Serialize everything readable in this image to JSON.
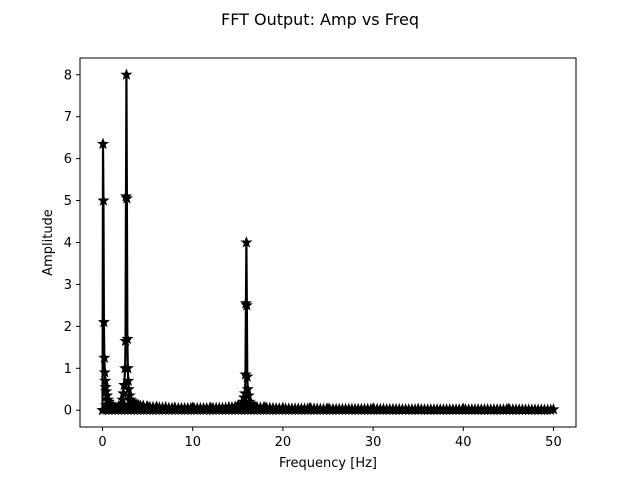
{
  "chart_data": {
    "type": "line",
    "title": "FFT Output: Amp vs Freq",
    "xlabel": "Frequency [Hz]",
    "ylabel": "Amplitude",
    "xlim": [
      -2.5,
      52.5
    ],
    "ylim": [
      -0.4,
      8.4
    ],
    "xticks": [
      0,
      10,
      20,
      30,
      40,
      50
    ],
    "yticks": [
      0,
      1,
      2,
      3,
      4,
      5,
      6,
      7,
      8
    ],
    "grid": false,
    "legend": "none",
    "series": [
      {
        "marker": "star",
        "color": "#000000",
        "x": [
          0,
          0.05,
          0.1,
          0.15,
          0.2,
          0.25,
          0.3,
          0.35,
          0.4,
          0.5,
          0.6,
          0.7,
          0.8,
          1.0,
          1.2,
          1.4,
          1.6,
          1.8,
          2.0,
          2.2,
          2.3,
          2.4,
          2.5,
          2.55,
          2.6,
          2.65,
          2.7,
          2.75,
          2.8,
          2.85,
          2.9,
          3.0,
          3.1,
          3.2,
          3.4,
          3.6,
          3.8,
          4.0,
          4.5,
          5.0,
          6.0,
          7.0,
          8.0,
          10.0,
          12.0,
          14.0,
          15.0,
          15.4,
          15.6,
          15.7,
          15.8,
          15.85,
          15.9,
          15.95,
          16.0,
          16.05,
          16.1,
          16.2,
          16.3,
          16.4,
          16.6,
          17.0,
          18.0,
          20.0,
          23.0,
          25.0,
          30.0,
          35.0,
          40.0,
          45.0,
          50.0
        ],
        "y": [
          0.0,
          6.35,
          5.0,
          2.1,
          1.25,
          0.9,
          0.7,
          0.55,
          0.45,
          0.35,
          0.25,
          0.2,
          0.15,
          0.1,
          0.07,
          0.06,
          0.06,
          0.09,
          0.12,
          0.25,
          0.4,
          0.6,
          1.0,
          1.65,
          5.1,
          8.0,
          5.05,
          1.7,
          1.0,
          0.7,
          0.5,
          0.35,
          0.25,
          0.2,
          0.17,
          0.15,
          0.14,
          0.12,
          0.1,
          0.09,
          0.08,
          0.07,
          0.06,
          0.06,
          0.06,
          0.07,
          0.1,
          0.15,
          0.2,
          0.3,
          0.4,
          0.85,
          2.55,
          4.0,
          2.5,
          0.8,
          0.5,
          0.35,
          0.2,
          0.15,
          0.1,
          0.08,
          0.07,
          0.05,
          0.05,
          0.04,
          0.04,
          0.03,
          0.03,
          0.03,
          0.02
        ]
      }
    ]
  }
}
